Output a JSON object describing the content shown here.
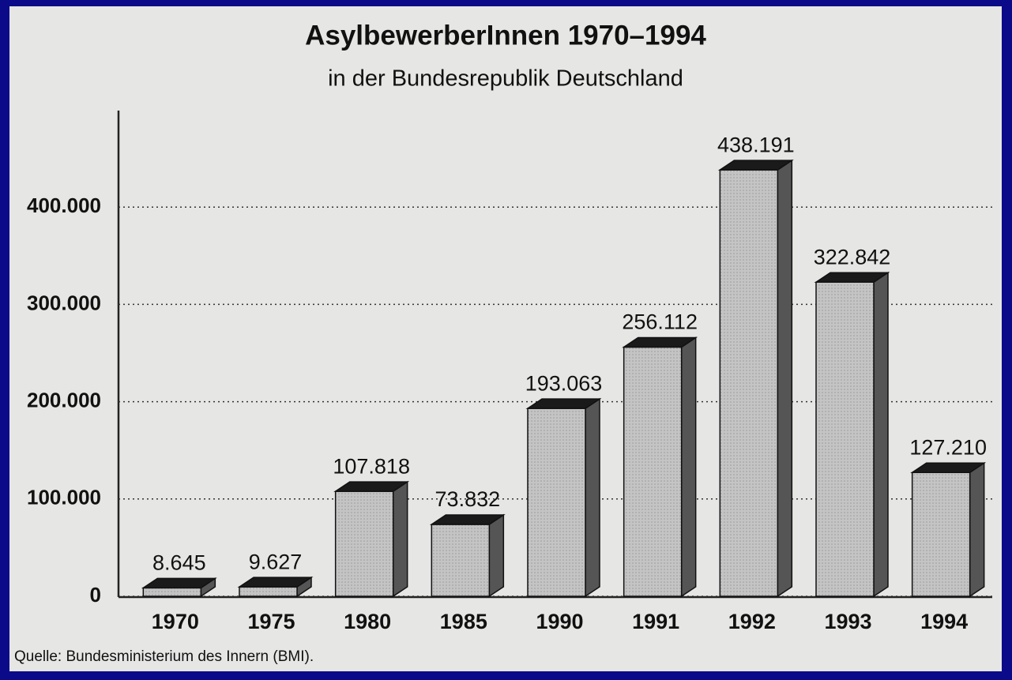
{
  "chart_data": {
    "type": "bar",
    "title": "AsylbewerberInnen 1970–1994",
    "subtitle": "in der Bundesrepublik Deutschland",
    "source": "Quelle: Bundesministerium des Innern (BMI).",
    "categories": [
      "1970",
      "1975",
      "1980",
      "1985",
      "1990",
      "1991",
      "1992",
      "1993",
      "1994"
    ],
    "values": [
      8645,
      9627,
      107818,
      73832,
      193063,
      256112,
      438191,
      322842,
      127210
    ],
    "value_labels": [
      "8.645",
      "9.627",
      "107.818",
      "73.832",
      "193.063",
      "256.112",
      "438.191",
      "322.842",
      "127.210"
    ],
    "color": "#bdbdbd",
    "ylim": [
      0,
      500000
    ],
    "yticks": [
      0,
      {
        "value": 100000,
        "label": "100.000"
      },
      {
        "value": 200000,
        "label": "200.000"
      },
      {
        "value": 300000,
        "label": "300.000"
      },
      {
        "value": 400000,
        "label": "400.000"
      }
    ],
    "grid": true
  }
}
